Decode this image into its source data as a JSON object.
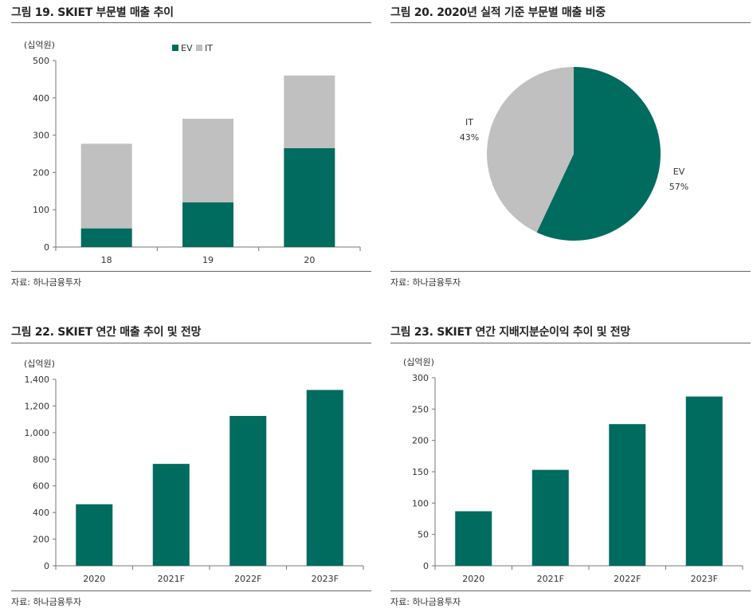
{
  "chart_data": [
    {
      "type": "bar",
      "stacked": true,
      "title": "그림 19. SKIET 부문별 매출 추이",
      "ylabel": "(십억원)",
      "categories": [
        "18",
        "19",
        "20"
      ],
      "yticks": [
        "500",
        "400",
        "300",
        "200",
        "100",
        "0"
      ],
      "ylim": [
        0,
        500
      ],
      "legend_position": "top-right",
      "series": [
        {
          "name": "EV",
          "values": [
            50,
            120,
            265
          ],
          "color": "#006b5f"
        },
        {
          "name": "IT",
          "values": [
            227,
            224,
            195
          ],
          "color": "#c0c0c0"
        }
      ],
      "source": "자료: 하나금융투자"
    },
    {
      "type": "pie",
      "title": "그림 20. 2020년 실적 기준 부문별 매출 비중",
      "slices": [
        {
          "name": "EV",
          "value": 57,
          "label": "57%",
          "color": "#006b5f"
        },
        {
          "name": "IT",
          "value": 43,
          "label": "43%",
          "color": "#c0c0c0"
        }
      ],
      "source": "자료: 하나금융투자"
    },
    {
      "type": "bar",
      "title": "그림 22. SKIET 연간 매출 추이 및 전망",
      "ylabel": "(십억원)",
      "categories": [
        "2020",
        "2021F",
        "2022F",
        "2023F"
      ],
      "values": [
        462,
        765,
        1125,
        1320
      ],
      "yticks": [
        "1,400",
        "1,200",
        "1,000",
        "800",
        "600",
        "400",
        "200",
        "0"
      ],
      "ylim": [
        0,
        1400
      ],
      "color": "#006b5f",
      "source": "자료: 하나금융투자"
    },
    {
      "type": "bar",
      "title": "그림 23. SKIET 연간 지배지분순이익 추이 및 전망",
      "ylabel": "(십억원)",
      "categories": [
        "2020",
        "2021F",
        "2022F",
        "2023F"
      ],
      "values": [
        87,
        153,
        226,
        270
      ],
      "yticks": [
        "300",
        "250",
        "200",
        "150",
        "100",
        "50",
        "0"
      ],
      "ylim": [
        0,
        300
      ],
      "color": "#006b5f",
      "source": "자료: 하나금융투자"
    }
  ]
}
